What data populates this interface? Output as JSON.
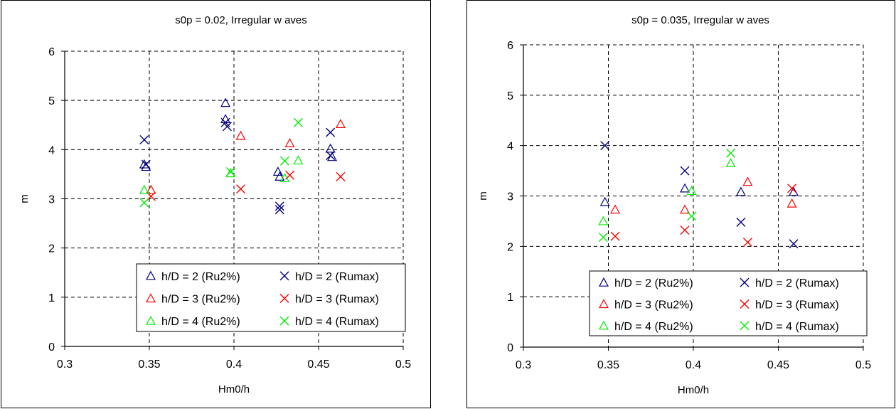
{
  "chart_data": [
    {
      "type": "scatter",
      "title": "s0p = 0.02, Irregular w aves",
      "xlabel": "Hm0/h",
      "ylabel": "m",
      "xlim": [
        0.3,
        0.5
      ],
      "ylim": [
        0,
        6
      ],
      "xticks": [
        "0.3",
        "0.35",
        "0.4",
        "0.45",
        "0.5"
      ],
      "yticks": [
        "0",
        "1",
        "2",
        "3",
        "4",
        "5",
        "6"
      ],
      "grid": true,
      "legend_position": "bottom-right",
      "series": [
        {
          "name": "h/D = 2 (Ru2%)",
          "marker": "triangle",
          "color": "#000080",
          "points": [
            [
              0.347,
              3.7
            ],
            [
              0.348,
              3.65
            ],
            [
              0.395,
              4.95
            ],
            [
              0.395,
              4.62
            ],
            [
              0.426,
              3.55
            ],
            [
              0.427,
              3.45
            ],
            [
              0.457,
              4.02
            ],
            [
              0.458,
              3.85
            ]
          ]
        },
        {
          "name": "h/D = 2 (Rumax)",
          "marker": "x",
          "color": "#000080",
          "points": [
            [
              0.347,
              4.2
            ],
            [
              0.348,
              3.7
            ],
            [
              0.395,
              4.55
            ],
            [
              0.396,
              4.47
            ],
            [
              0.427,
              2.85
            ],
            [
              0.427,
              2.78
            ],
            [
              0.457,
              4.35
            ],
            [
              0.457,
              3.88
            ]
          ]
        },
        {
          "name": "h/D = 3 (Ru2%)",
          "marker": "triangle",
          "color": "#ff0000",
          "points": [
            [
              0.351,
              3.18
            ],
            [
              0.404,
              4.28
            ],
            [
              0.433,
              4.13
            ],
            [
              0.463,
              4.52
            ]
          ]
        },
        {
          "name": "h/D = 3 (Rumax)",
          "marker": "x",
          "color": "#ff0000",
          "points": [
            [
              0.351,
              3.05
            ],
            [
              0.404,
              3.2
            ],
            [
              0.433,
              3.48
            ],
            [
              0.463,
              3.45
            ]
          ]
        },
        {
          "name": "h/D = 4 (Ru2%)",
          "marker": "triangle",
          "color": "#00ee00",
          "points": [
            [
              0.347,
              3.18
            ],
            [
              0.398,
              3.52
            ],
            [
              0.43,
              3.42
            ],
            [
              0.438,
              3.78
            ]
          ]
        },
        {
          "name": "h/D = 4 (Rumax)",
          "marker": "x",
          "color": "#00ee00",
          "points": [
            [
              0.347,
              2.92
            ],
            [
              0.398,
              3.55
            ],
            [
              0.43,
              3.77
            ],
            [
              0.438,
              4.55
            ]
          ]
        }
      ]
    },
    {
      "type": "scatter",
      "title": "s0p = 0.035, Irregular w aves",
      "xlabel": "Hm0/h",
      "ylabel": "m",
      "xlim": [
        0.3,
        0.5
      ],
      "ylim": [
        0,
        6
      ],
      "xticks": [
        "0.3",
        "0.35",
        "0.4",
        "0.45",
        "0.5"
      ],
      "yticks": [
        "0",
        "1",
        "2",
        "3",
        "4",
        "5",
        "6"
      ],
      "grid": true,
      "legend_position": "bottom-right",
      "series": [
        {
          "name": "h/D = 2 (Ru2%)",
          "marker": "triangle",
          "color": "#000080",
          "points": [
            [
              0.348,
              2.88
            ],
            [
              0.395,
              3.15
            ],
            [
              0.428,
              3.08
            ],
            [
              0.459,
              3.08
            ]
          ]
        },
        {
          "name": "h/D = 2 (Rumax)",
          "marker": "x",
          "color": "#000080",
          "points": [
            [
              0.348,
              4.0
            ],
            [
              0.395,
              3.5
            ],
            [
              0.428,
              2.48
            ],
            [
              0.459,
              2.05
            ]
          ]
        },
        {
          "name": "h/D = 3 (Ru2%)",
          "marker": "triangle",
          "color": "#ff0000",
          "points": [
            [
              0.354,
              2.73
            ],
            [
              0.395,
              2.73
            ],
            [
              0.432,
              3.28
            ],
            [
              0.458,
              2.85
            ]
          ]
        },
        {
          "name": "h/D = 3 (Rumax)",
          "marker": "x",
          "color": "#ff0000",
          "points": [
            [
              0.354,
              2.2
            ],
            [
              0.395,
              2.32
            ],
            [
              0.432,
              2.08
            ],
            [
              0.458,
              3.15
            ]
          ]
        },
        {
          "name": "h/D = 4 (Ru2%)",
          "marker": "triangle",
          "color": "#00ee00",
          "points": [
            [
              0.347,
              2.5
            ],
            [
              0.399,
              3.1
            ],
            [
              0.422,
              3.65
            ]
          ]
        },
        {
          "name": "h/D = 4 (Rumax)",
          "marker": "x",
          "color": "#00ee00",
          "points": [
            [
              0.347,
              2.18
            ],
            [
              0.399,
              2.6
            ],
            [
              0.422,
              3.85
            ]
          ]
        }
      ]
    }
  ]
}
